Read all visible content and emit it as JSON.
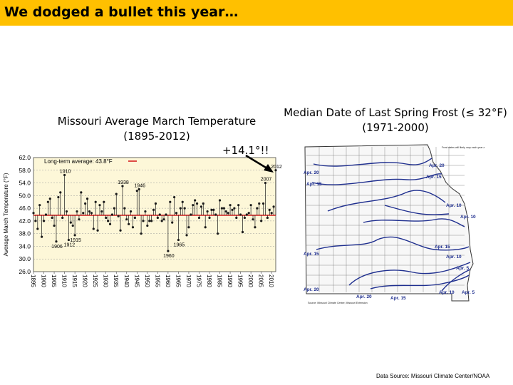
{
  "slide": {
    "title": "We dodged a bullet this year…",
    "annotation": "+14.1°!!",
    "source": "Data Source: Missouri Climate Center/NOAA"
  },
  "chart_data": {
    "type": "line",
    "title": "Missouri Average March Temperature",
    "subtitle": "(1895-2012)",
    "ylabel": "Average March Temperature (°F)",
    "ylim": [
      26.0,
      62.0
    ],
    "yticks": [
      "62.0",
      "58.0",
      "54.0",
      "50.0",
      "46.0",
      "42.0",
      "38.0",
      "34.0",
      "30.0",
      "26.0"
    ],
    "xlim": [
      1895,
      2012
    ],
    "xticks": [
      "1895",
      "1900",
      "1905",
      "1910",
      "1915",
      "1920",
      "1925",
      "1930",
      "1935",
      "1940",
      "1945",
      "1950",
      "1955",
      "1960",
      "1965",
      "1970",
      "1975",
      "1980",
      "1985",
      "1990",
      "1995",
      "2000",
      "2005",
      "2010"
    ],
    "legend": "Long-term average: 43.8°F",
    "long_term_average": 43.8,
    "grid": true,
    "colors": {
      "series": "#1a1a1a",
      "average": "#d62020",
      "plot_bg": "#fdf7d8",
      "grid": "#999999"
    },
    "series": [
      {
        "x": [
          1895,
          1896,
          1897,
          1898,
          1899,
          1900,
          1901,
          1902,
          1903,
          1904,
          1905,
          1906,
          1907,
          1908,
          1909,
          1910,
          1911,
          1912,
          1913,
          1914,
          1915,
          1916,
          1917,
          1918,
          1919,
          1920,
          1921,
          1922,
          1923,
          1924,
          1925,
          1926,
          1927,
          1928,
          1929,
          1930,
          1931,
          1932,
          1933,
          1934,
          1935,
          1936,
          1937,
          1938,
          1939,
          1940,
          1941,
          1942,
          1943,
          1944,
          1945,
          1946,
          1947,
          1948,
          1949,
          1950,
          1951,
          1952,
          1953,
          1954,
          1955,
          1956,
          1957,
          1958,
          1959,
          1960,
          1961,
          1962,
          1963,
          1964,
          1965,
          1966,
          1967,
          1968,
          1969,
          1970,
          1971,
          1972,
          1973,
          1974,
          1975,
          1976,
          1977,
          1978,
          1979,
          1980,
          1981,
          1982,
          1983,
          1984,
          1985,
          1986,
          1987,
          1988,
          1989,
          1990,
          1991,
          1992,
          1993,
          1994,
          1995,
          1996,
          1997,
          1998,
          1999,
          2000,
          2001,
          2002,
          2003,
          2004,
          2005,
          2006,
          2007,
          2008,
          2009,
          2010,
          2011,
          2012
        ],
        "values": [
          44.5,
          42.0,
          39.5,
          47.0,
          37.0,
          42.0,
          44.0,
          48.0,
          49.0,
          43.0,
          40.5,
          35.5,
          49.5,
          51.0,
          43.0,
          56.5,
          45.0,
          36.0,
          41.5,
          40.5,
          37.5,
          45.0,
          42.5,
          51.0,
          44.5,
          47.5,
          49.0,
          45.0,
          44.5,
          39.5,
          48.0,
          39.0,
          47.0,
          45.0,
          48.0,
          43.0,
          42.0,
          41.0,
          44.0,
          46.0,
          50.5,
          43.5,
          39.0,
          53.0,
          46.0,
          42.5,
          41.0,
          45.0,
          40.0,
          43.0,
          51.5,
          52.0,
          38.0,
          42.0,
          45.0,
          40.5,
          42.0,
          42.0,
          45.5,
          47.5,
          43.0,
          44.0,
          42.0,
          42.5,
          44.0,
          32.5,
          48.0,
          41.5,
          49.5,
          44.5,
          36.0,
          46.0,
          48.0,
          46.0,
          37.5,
          40.0,
          44.0,
          47.0,
          48.5,
          47.5,
          43.0,
          46.5,
          47.5,
          40.0,
          45.0,
          43.0,
          45.5,
          45.5,
          44.0,
          38.0,
          48.5,
          46.0,
          46.0,
          45.0,
          44.5,
          47.0,
          45.5,
          46.0,
          43.0,
          47.0,
          44.0,
          38.5,
          43.0,
          44.0,
          44.5,
          47.0,
          42.5,
          40.0,
          46.0,
          47.5,
          42.0,
          47.5,
          54.0,
          43.0,
          45.5,
          44.5,
          46.5,
          58.0
        ]
      }
    ],
    "annotations": [
      {
        "label": "1910",
        "year": 1910
      },
      {
        "label": "1938",
        "year": 1938
      },
      {
        "label": "1946",
        "year": 1946
      },
      {
        "label": "2007",
        "year": 2007
      },
      {
        "label": "2012",
        "year": 2012
      },
      {
        "label": "1906",
        "year": 1906
      },
      {
        "label": "1912",
        "year": 1912
      },
      {
        "label": "1915",
        "year": 1915
      },
      {
        "label": "1960",
        "year": 1960
      },
      {
        "label": "1965",
        "year": 1965
      }
    ]
  },
  "map": {
    "title": "Median Date of Last Spring Frost (≤ 32°F)",
    "subtitle": "(1971-2000)",
    "note": "Frost dates will likely vary each year and can also depend on local conditions.",
    "credit": "Source: Missouri Climate Center, Missouri Extension",
    "contour_labels": [
      "Apr. 20",
      "Apr. 15",
      "Apr. 20",
      "Apr. 15",
      "Apr. 10",
      "Apr. 10",
      "Apr. 15",
      "Apr. 15",
      "Apr. 10",
      "Apr. 5",
      "Apr. 20",
      "Apr. 20",
      "Apr. 15",
      "Apr. 10",
      "Apr. 5"
    ],
    "line_color": "#1f2f8f"
  }
}
